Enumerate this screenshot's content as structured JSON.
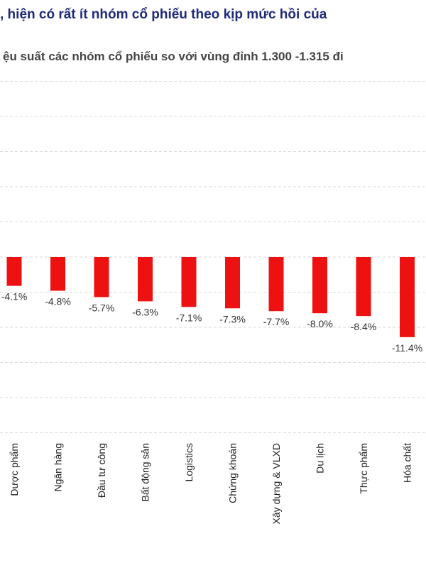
{
  "header": {
    "title": ", hiện có rất ít nhóm cổ phiếu theo kịp mức hồi của",
    "subtitle": "ệu suất các nhóm cổ phiếu so với vùng đỉnh 1.300 -1.315 đi"
  },
  "chart_data": {
    "type": "bar",
    "title": ", hiện có rất ít nhóm cổ phiếu theo kịp mức hồi của",
    "subtitle": "ệu suất các nhóm cổ phiếu so với vùng đỉnh 1.300 -1.315 đi",
    "categories": [
      "Dược phẩm",
      "Ngân hàng",
      "Đầu tư công",
      "Bất động sản",
      "Logistics",
      "Chứng khoán",
      "Xây dựng & VLXD",
      "Du lịch",
      "Thực phẩm",
      "Hóa chất"
    ],
    "values": [
      -4.1,
      -4.8,
      -5.7,
      -6.3,
      -7.1,
      -7.3,
      -7.7,
      -8.0,
      -8.4,
      -11.4
    ],
    "value_labels": [
      "-4.1%",
      "-4.8%",
      "-5.7%",
      "-6.3%",
      "-7.1%",
      "-7.3%",
      "-7.7%",
      "-8.0%",
      "-8.4%",
      "-11.4%"
    ],
    "ylim": [
      -25,
      25
    ],
    "grid": true,
    "bar_color": "#ee1111",
    "grid_color": "#d9d9d9"
  }
}
